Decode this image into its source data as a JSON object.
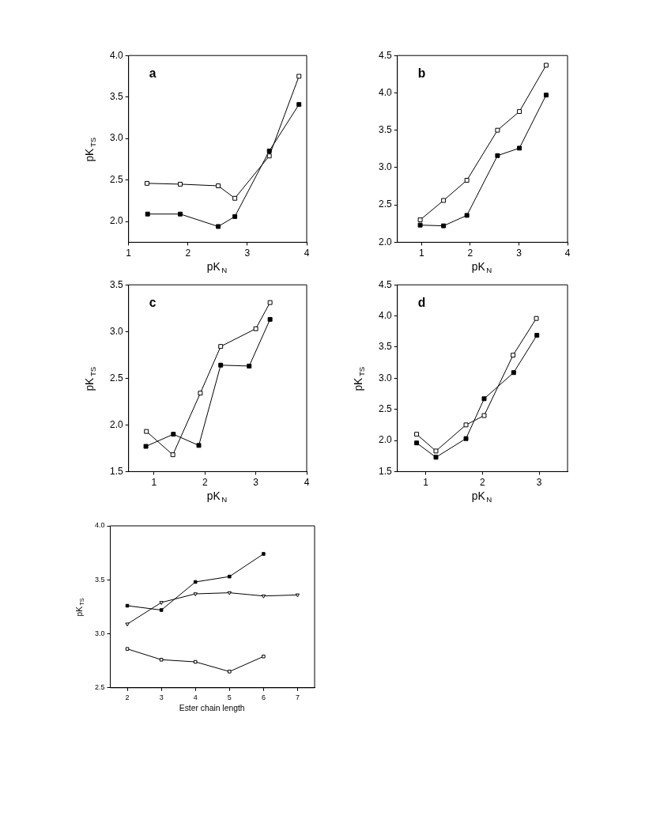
{
  "chart_data": [
    {
      "type": "line",
      "xlabel": "pK$_{N}$",
      "ylabel": "pK$_{TS}$",
      "annotations": [
        "a"
      ],
      "xlim": [
        1,
        4
      ],
      "xticks": [
        1,
        2,
        3,
        4
      ],
      "ylim": [
        1.75,
        4.0
      ],
      "yticks": [
        {
          "value": 2.0,
          "label": "2.0"
        },
        2.5,
        {
          "value": 3.0,
          "label": "3.0"
        },
        3.5,
        {
          "value": 4.0,
          "label": "4.0"
        }
      ],
      "grid": false,
      "legend": false,
      "line_style": "solid",
      "series": [
        {
          "color": "#ffffff",
          "marker": "square",
          "x": [
            1.31,
            1.87,
            2.51,
            2.79,
            3.37,
            3.87
          ],
          "values": [
            2.46,
            2.45,
            2.43,
            2.28,
            2.79,
            3.75
          ]
        },
        {
          "color": "#000000",
          "marker": "square",
          "x": [
            1.32,
            1.87,
            2.51,
            2.79,
            3.37,
            3.87
          ],
          "values": [
            2.09,
            2.09,
            1.94,
            2.06,
            2.85,
            3.41
          ]
        }
      ]
    },
    {
      "type": "line",
      "xlabel": "pK$_{N}$",
      "annotations": [
        "b"
      ],
      "xlim": [
        0.5,
        4
      ],
      "xticks": [
        1,
        2,
        3,
        4
      ],
      "ylim": [
        2.0,
        4.5
      ],
      "yticks": [
        {
          "value": 2.0,
          "label": "2.0"
        },
        2.5,
        {
          "value": 3.0,
          "label": "3.0"
        },
        3.5,
        {
          "value": 4.0,
          "label": "4.0"
        },
        4.5
      ],
      "grid": false,
      "legend": false,
      "line_style": "solid",
      "series": [
        {
          "color": "#ffffff",
          "marker": "square",
          "x": [
            0.97,
            1.45,
            1.93,
            2.56,
            3.01,
            3.56
          ],
          "values": [
            2.3,
            2.56,
            2.83,
            3.5,
            3.75,
            4.37
          ]
        },
        {
          "color": "#000000",
          "marker": "square",
          "x": [
            0.97,
            1.45,
            1.93,
            2.56,
            3.01,
            3.56
          ],
          "values": [
            2.23,
            2.22,
            2.36,
            3.16,
            3.26,
            3.97
          ]
        }
      ]
    },
    {
      "type": "line",
      "xlabel": "pK$_{N}$",
      "ylabel": "pK$_{TS}$",
      "annotations": [
        "c"
      ],
      "xlim": [
        0.5,
        4
      ],
      "xticks": [
        1,
        2,
        3,
        4
      ],
      "ylim": [
        1.5,
        3.5
      ],
      "yticks": [
        1.5,
        {
          "value": 2.0,
          "label": "2.0"
        },
        2.5,
        {
          "value": 3.0,
          "label": "3.0"
        },
        3.5
      ],
      "grid": false,
      "legend": false,
      "line_style": "solid",
      "series": [
        {
          "color": "#ffffff",
          "marker": "square",
          "x": [
            0.85,
            1.37,
            1.91,
            2.31,
            3.0,
            3.28
          ],
          "values": [
            1.93,
            1.68,
            2.34,
            2.84,
            3.03,
            3.31
          ]
        },
        {
          "color": "#000000",
          "marker": "square",
          "x": [
            0.84,
            1.38,
            1.88,
            2.31,
            2.87,
            3.28
          ],
          "values": [
            1.77,
            1.9,
            1.78,
            2.64,
            2.63,
            3.13
          ]
        }
      ]
    },
    {
      "type": "line",
      "xlabel": "pK$_{N}$",
      "ylabel": "pK$_{TS}$",
      "annotations": [
        "d"
      ],
      "xlim": [
        0.5,
        3.5
      ],
      "xticks": [
        1,
        2,
        3
      ],
      "ylim": [
        1.5,
        4.5
      ],
      "yticks": [
        1.5,
        {
          "value": 2.0,
          "label": "2.0"
        },
        2.5,
        {
          "value": 3.0,
          "label": "3.0"
        },
        3.5,
        {
          "value": 4.0,
          "label": "4.0"
        },
        4.5
      ],
      "grid": false,
      "legend": false,
      "line_style": "solid",
      "series": [
        {
          "color": "#ffffff",
          "marker": "square",
          "x": [
            0.84,
            1.18,
            1.71,
            2.03,
            2.54,
            2.95
          ],
          "values": [
            2.1,
            1.83,
            2.25,
            2.4,
            3.37,
            3.96
          ]
        },
        {
          "color": "#000000",
          "marker": "square",
          "x": [
            0.84,
            1.18,
            1.71,
            2.03,
            2.55,
            2.96
          ],
          "values": [
            1.96,
            1.73,
            2.03,
            2.67,
            3.09,
            3.69
          ]
        }
      ]
    },
    {
      "type": "line",
      "xlabel": "Ester chain length",
      "ylabel": "pK$_{TS}$",
      "xlim": [
        1.5,
        7.5
      ],
      "xticks": [
        2,
        3,
        4,
        5,
        6,
        7
      ],
      "ylim": [
        2.5,
        4.0
      ],
      "yticks": [
        2.5,
        {
          "value": 3.0,
          "label": "3.0"
        },
        3.5,
        {
          "value": 4.0,
          "label": "4.0"
        }
      ],
      "grid": false,
      "legend": false,
      "line_style": "solid",
      "series": [
        {
          "color": "#000000",
          "marker": "square",
          "x": [
            2,
            3,
            4,
            5,
            6
          ],
          "values": [
            3.26,
            3.22,
            3.48,
            3.53,
            3.74
          ]
        },
        {
          "color": "#ffffff",
          "marker": "triangle",
          "x": [
            2,
            3,
            4,
            5,
            6,
            7
          ],
          "values": [
            3.09,
            3.29,
            3.37,
            3.38,
            3.35,
            3.36
          ]
        },
        {
          "color": "#ffffff",
          "marker": "square",
          "x": [
            2,
            3,
            4,
            5,
            6
          ],
          "values": [
            2.86,
            2.76,
            2.74,
            2.65,
            2.79
          ]
        }
      ]
    }
  ]
}
